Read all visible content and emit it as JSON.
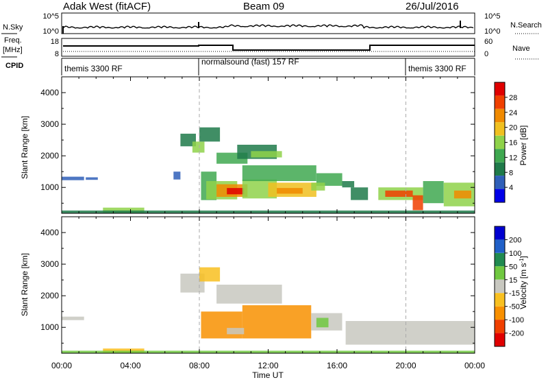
{
  "header": {
    "station": "Adak West (fitACF)",
    "beam": "Beam 09",
    "date": "26/Jul/2016"
  },
  "noise_panel": {
    "left_label": "N.Sky",
    "right_label": "N.Search",
    "left_ticks": [
      "10^5",
      "10^0"
    ],
    "right_ticks": [
      "10^5",
      "10^0"
    ]
  },
  "freq_panel": {
    "left_label_1": "Freq.",
    "left_label_2": "[MHz]",
    "right_label": "Nave",
    "left_ticks": [
      "18",
      "8"
    ],
    "right_ticks": [
      "60",
      "0"
    ]
  },
  "cpid_panel": {
    "label": "CPID",
    "segments": [
      {
        "label": "themis 3300 RF",
        "start": "00:00",
        "end": "08:00"
      },
      {
        "label": "normalsound (fast) 157 RF",
        "start": "08:00",
        "end": "20:00"
      },
      {
        "label": "themis 3300 RF",
        "start": "20:00",
        "end": "24:00"
      }
    ]
  },
  "x_axis": {
    "label": "Time UT",
    "ticks": [
      "00:00",
      "04:00",
      "08:00",
      "12:00",
      "16:00",
      "20:00",
      "00:00"
    ]
  },
  "colors": {
    "power": [
      "#0000e8",
      "#2f5fb8",
      "#1f7a4a",
      "#3fa850",
      "#8fd24a",
      "#f0c020",
      "#f08a00",
      "#f04000",
      "#e00000"
    ],
    "velocity": [
      "#0000d0",
      "#2060c8",
      "#208a50",
      "#70c840",
      "#c8c8c0",
      "#f8c020",
      "#f89000",
      "#f04000",
      "#e00000"
    ]
  },
  "chart_data": [
    {
      "type": "heatmap",
      "title": "Power",
      "xlabel": "Time UT",
      "ylabel": "Slant Range [km]",
      "x_ticks": [
        "00:00",
        "04:00",
        "08:00",
        "12:00",
        "16:00",
        "20:00",
        "00:00"
      ],
      "y_ticks": [
        "1000",
        "2000",
        "3000",
        "4000"
      ],
      "xlim_hours": [
        0,
        24
      ],
      "ylim_km": [
        180,
        4500
      ],
      "colorbar": {
        "label": "Power [dB]",
        "ticks": [
          "28",
          "24",
          "20",
          "16",
          "12",
          "8",
          "4"
        ],
        "range": [
          0,
          30
        ]
      },
      "regions": [
        {
          "t0": 0.0,
          "t1": 1.3,
          "r0": 1230,
          "r1": 1340,
          "value": 6
        },
        {
          "t0": 1.4,
          "t1": 2.1,
          "r0": 1240,
          "r1": 1320,
          "value": 5
        },
        {
          "t0": 6.5,
          "t1": 6.9,
          "r0": 1250,
          "r1": 1500,
          "value": 6
        },
        {
          "t0": 6.9,
          "t1": 7.8,
          "r0": 2300,
          "r1": 2700,
          "value": 8
        },
        {
          "t0": 7.6,
          "t1": 8.3,
          "r0": 2100,
          "r1": 2450,
          "value": 14
        },
        {
          "t0": 8.0,
          "t1": 9.2,
          "r0": 2450,
          "r1": 2900,
          "value": 7
        },
        {
          "t0": 9.0,
          "t1": 10.8,
          "r0": 1750,
          "r1": 2100,
          "value": 12
        },
        {
          "t0": 10.2,
          "t1": 12.5,
          "r0": 1900,
          "r1": 2350,
          "value": 8
        },
        {
          "t0": 11.0,
          "t1": 12.8,
          "r0": 1950,
          "r1": 2150,
          "value": 14
        },
        {
          "t0": 8.1,
          "t1": 9.0,
          "r0": 600,
          "r1": 1500,
          "value": 10
        },
        {
          "t0": 8.4,
          "t1": 10.2,
          "r0": 620,
          "r1": 1200,
          "value": 16
        },
        {
          "t0": 9.0,
          "t1": 10.8,
          "r0": 700,
          "r1": 1100,
          "value": 22
        },
        {
          "t0": 9.6,
          "t1": 10.6,
          "r0": 780,
          "r1": 980,
          "value": 27
        },
        {
          "t0": 10.5,
          "t1": 12.5,
          "r0": 650,
          "r1": 1250,
          "value": 14
        },
        {
          "t0": 10.5,
          "t1": 14.8,
          "r0": 1200,
          "r1": 1700,
          "value": 10
        },
        {
          "t0": 12.0,
          "t1": 14.8,
          "r0": 700,
          "r1": 1150,
          "value": 18
        },
        {
          "t0": 12.5,
          "t1": 14.0,
          "r0": 800,
          "r1": 980,
          "value": 22
        },
        {
          "t0": 14.8,
          "t1": 16.3,
          "r0": 1050,
          "r1": 1450,
          "value": 12
        },
        {
          "t0": 14.5,
          "t1": 15.3,
          "r0": 900,
          "r1": 1150,
          "value": 16
        },
        {
          "t0": 16.3,
          "t1": 17.0,
          "r0": 1000,
          "r1": 1200,
          "value": 8
        },
        {
          "t0": 18.4,
          "t1": 21.0,
          "r0": 600,
          "r1": 1000,
          "value": 16
        },
        {
          "t0": 18.8,
          "t1": 20.4,
          "r0": 700,
          "r1": 900,
          "value": 26
        },
        {
          "t0": 20.4,
          "t1": 21.0,
          "r0": 280,
          "r1": 750,
          "value": 24
        },
        {
          "t0": 21.0,
          "t1": 22.2,
          "r0": 500,
          "r1": 1200,
          "value": 12
        },
        {
          "t0": 22.2,
          "t1": 24.0,
          "r0": 400,
          "r1": 1150,
          "value": 14
        },
        {
          "t0": 22.8,
          "t1": 23.8,
          "r0": 650,
          "r1": 900,
          "value": 20
        },
        {
          "t0": 16.8,
          "t1": 17.8,
          "r0": 600,
          "r1": 1000,
          "value": 7
        },
        {
          "t0": 2.4,
          "t1": 4.8,
          "r0": 200,
          "r1": 360,
          "value": 14
        },
        {
          "t0": 0.0,
          "t1": 24.0,
          "r0": 180,
          "r1": 270,
          "value": 9
        }
      ]
    },
    {
      "type": "heatmap",
      "title": "Velocity",
      "xlabel": "Time UT",
      "ylabel": "Slant Range [km]",
      "x_ticks": [
        "00:00",
        "04:00",
        "08:00",
        "12:00",
        "16:00",
        "20:00",
        "00:00"
      ],
      "y_ticks": [
        "1000",
        "2000",
        "3000",
        "4000"
      ],
      "xlim_hours": [
        0,
        24
      ],
      "ylim_km": [
        180,
        4500
      ],
      "colorbar": {
        "label": "Velocity [m s^-1]",
        "ticks": [
          "200",
          "100",
          "50",
          "15",
          "-15",
          "-50",
          "-100",
          "-200"
        ],
        "range": [
          -250,
          250
        ]
      },
      "regions": [
        {
          "t0": 0.0,
          "t1": 1.3,
          "r0": 1230,
          "r1": 1340,
          "value": 0
        },
        {
          "t0": 6.9,
          "t1": 8.3,
          "r0": 2100,
          "r1": 2700,
          "value": 0
        },
        {
          "t0": 8.0,
          "t1": 9.2,
          "r0": 2450,
          "r1": 2900,
          "value": -20
        },
        {
          "t0": 9.0,
          "t1": 12.8,
          "r0": 1750,
          "r1": 2350,
          "value": 0
        },
        {
          "t0": 8.1,
          "t1": 10.5,
          "r0": 650,
          "r1": 1500,
          "value": -40
        },
        {
          "t0": 10.5,
          "t1": 14.5,
          "r0": 650,
          "r1": 1700,
          "value": -35
        },
        {
          "t0": 9.6,
          "t1": 10.6,
          "r0": 780,
          "r1": 980,
          "value": 0
        },
        {
          "t0": 14.5,
          "t1": 16.3,
          "r0": 900,
          "r1": 1450,
          "value": 0
        },
        {
          "t0": 14.8,
          "t1": 15.5,
          "r0": 1000,
          "r1": 1300,
          "value": 30
        },
        {
          "t0": 16.5,
          "t1": 24.0,
          "r0": 450,
          "r1": 1200,
          "value": 0
        },
        {
          "t0": 2.4,
          "t1": 4.8,
          "r0": 200,
          "r1": 330,
          "value": -30
        },
        {
          "t0": 0.0,
          "t1": 24.0,
          "r0": 180,
          "r1": 260,
          "value": 20
        }
      ]
    }
  ]
}
